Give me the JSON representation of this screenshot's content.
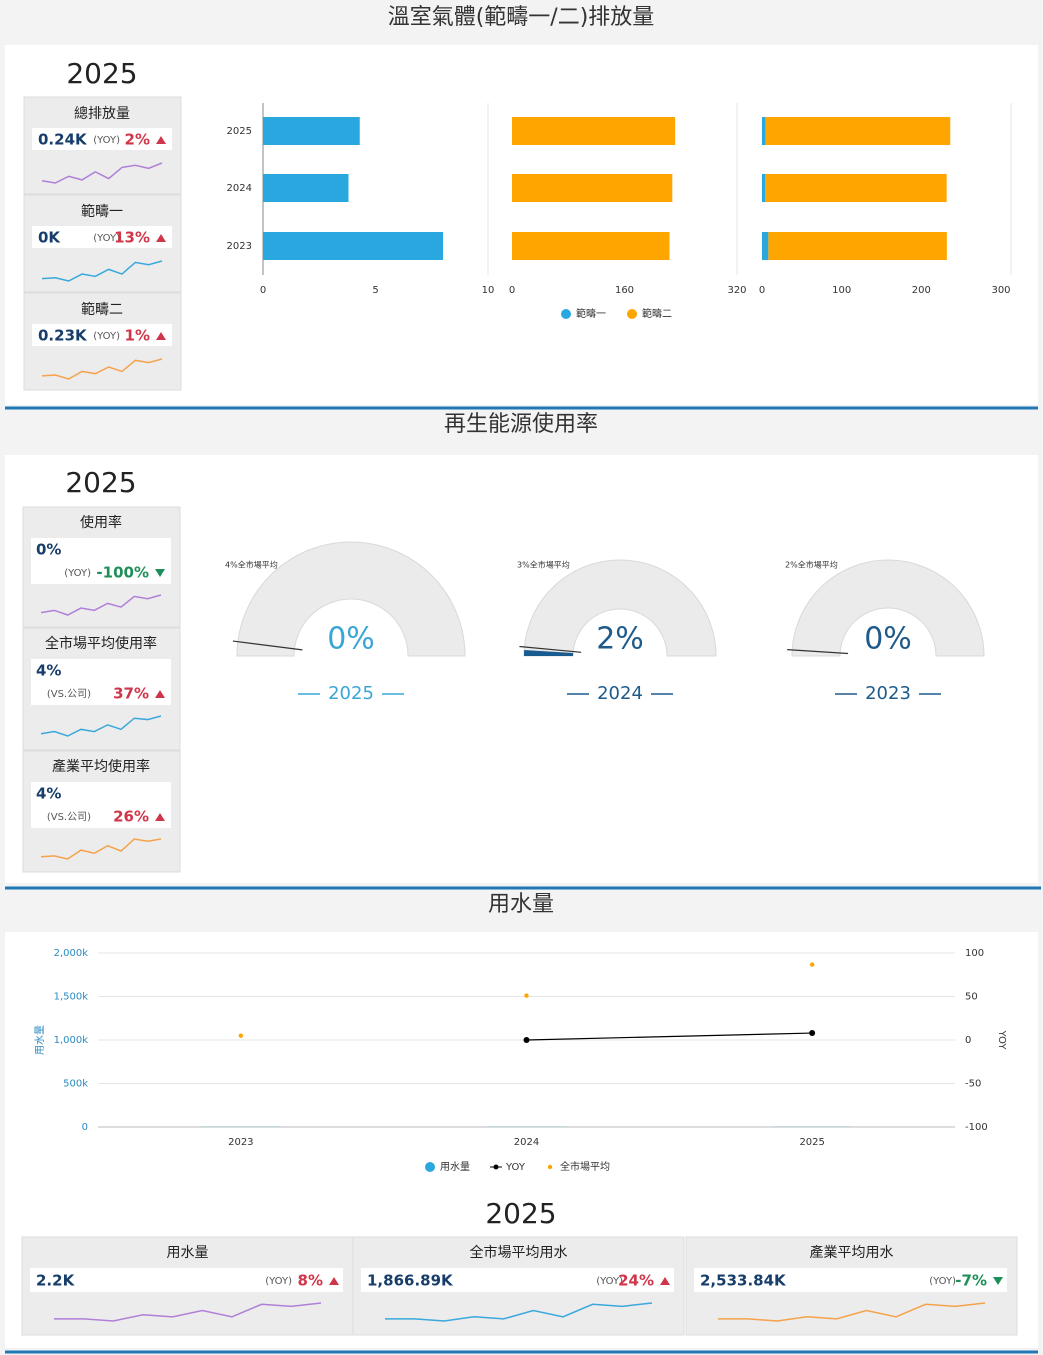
{
  "sections": [
    {
      "title": "溫室氣體(範疇一/二)排放量",
      "year": "2025",
      "kpis": [
        {
          "title": "總排放量",
          "value": "0.24K",
          "basis": "(YOY)",
          "change": "2%",
          "direction": "up",
          "color": "#b07fd8",
          "trend": [
            3,
            2.5,
            4,
            3.2,
            5,
            3.5,
            6,
            6.5,
            5.8,
            7
          ]
        },
        {
          "title": "範疇一",
          "value": "0K",
          "basis": "(YOY)",
          "change": "13%",
          "direction": "up",
          "color": "#3aa8dc",
          "trend": [
            3,
            3.2,
            2.5,
            4,
            3.5,
            5,
            4,
            6.5,
            6,
            6.8
          ]
        },
        {
          "title": "範疇二",
          "value": "0.23K",
          "basis": "(YOY)",
          "change": "1%",
          "direction": "up",
          "color": "#f5a24b",
          "trend": [
            3,
            3.2,
            2.3,
            4,
            3.5,
            5,
            4,
            6.5,
            6,
            6.8
          ]
        }
      ],
      "chart_data": {
        "type": "bar-panels",
        "categories": [
          "2025",
          "2024",
          "2023"
        ],
        "series": [
          {
            "name": "範疇一",
            "color": "#29a8e0",
            "values": [
              4.3,
              3.8,
              8.0
            ]
          },
          {
            "name": "範疇二",
            "color": "#ffa500",
            "values": [
              232,
              228,
              224
            ]
          }
        ],
        "panels": [
          {
            "xlim": [
              0,
              10
            ],
            "xticks": [
              0,
              5,
              10
            ]
          },
          {
            "xlim": [
              0,
              320
            ],
            "xticks": [
              0,
              160,
              320
            ]
          },
          {
            "stacked": true,
            "xlim": [
              0,
              300
            ],
            "xticks": [
              0,
              100,
              200,
              300
            ]
          }
        ]
      }
    },
    {
      "title": "再生能源使用率",
      "year": "2025",
      "kpis": [
        {
          "title": "使用率",
          "value": "0%",
          "basis": "(YOY)",
          "change": "-100%",
          "direction": "down",
          "color": "#b07fd8",
          "trend": [
            3,
            3.5,
            2.5,
            4,
            3.5,
            5,
            4.2,
            6.5,
            6,
            6.8
          ]
        },
        {
          "title": "全市場平均使用率",
          "value": "4%",
          "basis": "(VS.公司)",
          "change": "37%",
          "direction": "up",
          "color": "#3aa8dc",
          "trend": [
            3,
            3.5,
            2.5,
            4,
            3.5,
            5,
            4,
            6.5,
            6.2,
            7
          ]
        },
        {
          "title": "產業平均使用率",
          "value": "4%",
          "basis": "(VS.公司)",
          "change": "26%",
          "direction": "up",
          "color": "#f5a24b",
          "trend": [
            3,
            3.2,
            2.5,
            4.5,
            3.8,
            5.5,
            4.3,
            7,
            6.5,
            7
          ]
        }
      ],
      "chart_data": {
        "type": "gauge",
        "range": [
          0,
          100
        ],
        "gauges": [
          {
            "label": "2025",
            "value": 0,
            "value_label": "0%",
            "benchmark": 4,
            "benchmark_label": "4%全市場平均"
          },
          {
            "label": "2024",
            "value": 2,
            "value_label": "2%",
            "benchmark": 3,
            "benchmark_label": "3%全市場平均"
          },
          {
            "label": "2023",
            "value": 0,
            "value_label": "0%",
            "benchmark": 2,
            "benchmark_label": "2%全市場平均"
          }
        ]
      }
    },
    {
      "title": "用水量",
      "year": "2025",
      "chart_data": {
        "type": "combo",
        "y_label": "用水量",
        "y2_label": "YOY",
        "categories": [
          "2023",
          "2024",
          "2025"
        ],
        "series": [
          {
            "name": "用水量",
            "type": "bar",
            "color": "#29a8e0",
            "values": [
              2000,
              2000,
              2200
            ]
          },
          {
            "name": "YOY",
            "type": "line",
            "axis": "y2",
            "color": "#000000",
            "values": [
              null,
              0,
              8
            ]
          },
          {
            "name": "全市場平均",
            "type": "scatter",
            "color": "#ffa500",
            "values": [
              1050000,
              1510000,
              1866890
            ]
          }
        ],
        "ylim": [
          0,
          2000000
        ],
        "yticks": [
          0,
          {
            "value": 500000,
            "label": "500k"
          },
          {
            "value": 1000000,
            "label": "1,000k"
          },
          {
            "value": 1500000,
            "label": "1,500k"
          },
          {
            "value": 2000000,
            "label": "2,000k"
          }
        ],
        "y2lim": [
          -100,
          100
        ],
        "y2ticks": [
          -100,
          -50,
          0,
          50,
          100
        ],
        "grid": true
      },
      "kpis": [
        {
          "title": "用水量",
          "value": "2.2K",
          "basis": "(YOY)",
          "change": "8%",
          "direction": "up",
          "color": "#b07fd8",
          "trend": [
            3,
            3,
            2.5,
            4,
            3.5,
            5,
            3.5,
            6.5,
            6,
            6.8
          ]
        },
        {
          "title": "全市場平均用水",
          "value": "1,866.89K",
          "basis": "(YOY)",
          "change": "24%",
          "direction": "up",
          "color": "#3aa8dc",
          "trend": [
            3,
            3,
            2.5,
            3.5,
            3,
            5,
            3.5,
            6.5,
            6,
            6.8
          ]
        },
        {
          "title": "產業平均用水",
          "value": "2,533.84K",
          "basis": "(YOY)",
          "change": "-7%",
          "direction": "down",
          "color": "#f5a24b",
          "trend": [
            3,
            3,
            2.5,
            3.5,
            3,
            5,
            3.5,
            6.5,
            6,
            6.8
          ]
        }
      ]
    }
  ]
}
